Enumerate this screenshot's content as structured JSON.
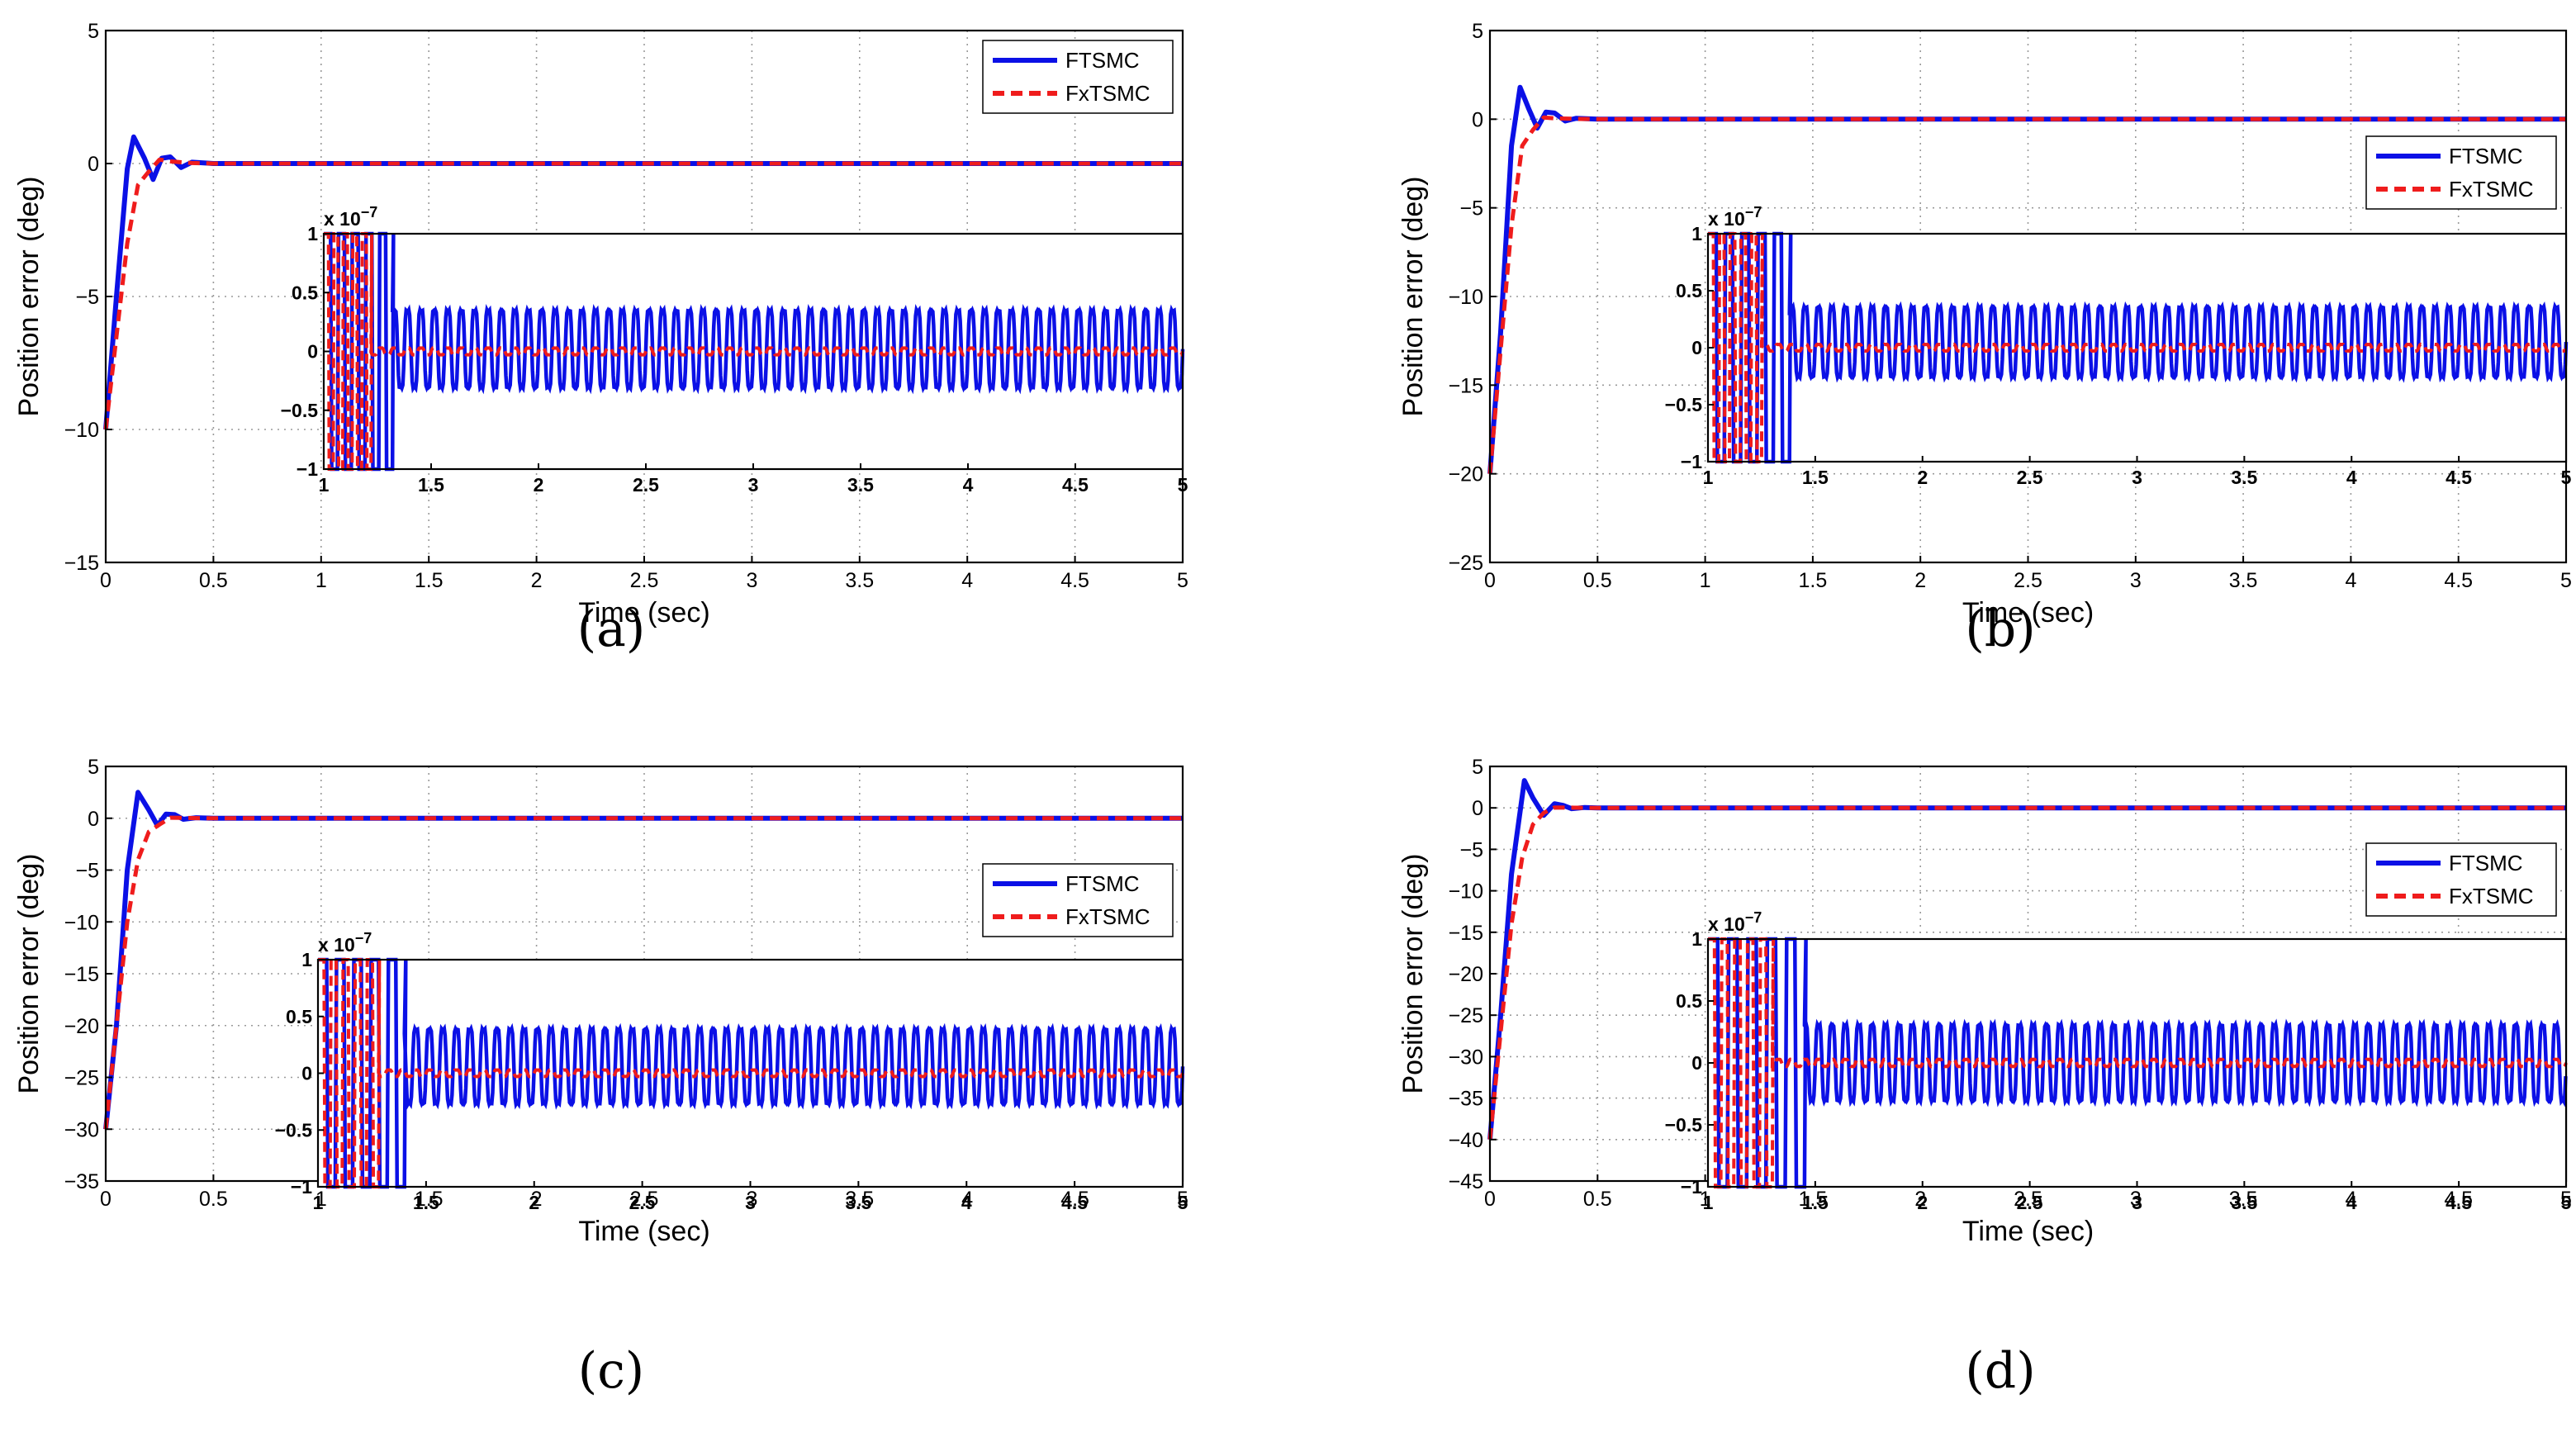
{
  "figure": {
    "series_styles": [
      {
        "name": "FTSMC",
        "color": "#0b10e6",
        "dash": "solid"
      },
      {
        "name": "FxTSMC",
        "color": "#ef1c1c",
        "dash": "dashed"
      }
    ]
  },
  "chart_data": [
    {
      "type": "line",
      "caption": "(a)",
      "xlabel": "Time (sec)",
      "ylabel": "Position error (deg)",
      "xlim": [
        0,
        5
      ],
      "ylim": [
        -15,
        5
      ],
      "xticks": [
        "0",
        "0.5",
        "1",
        "1.5",
        "2",
        "2.5",
        "3",
        "3.5",
        "4",
        "4.5",
        "5"
      ],
      "yticks": [
        "5",
        "0",
        "−5",
        "−10",
        "−15"
      ],
      "grid": true,
      "legend_position": "top-right",
      "initial_error": -10,
      "series": [
        {
          "name": "FTSMC",
          "x": [
            0,
            0.05,
            0.1,
            0.13,
            0.18,
            0.22,
            0.26,
            0.3,
            0.35,
            0.4,
            0.5,
            5
          ],
          "y": [
            -10,
            -5,
            -0.2,
            1.0,
            0.2,
            -0.6,
            0.2,
            0.25,
            -0.15,
            0.05,
            0,
            0
          ]
        },
        {
          "name": "FxTSMC",
          "x": [
            0,
            0.05,
            0.1,
            0.15,
            0.2,
            0.25,
            0.3,
            0.4,
            0.5,
            5
          ],
          "y": [
            -10,
            -6.5,
            -3,
            -0.8,
            -0.3,
            0.15,
            0.08,
            0.02,
            0,
            0
          ]
        }
      ],
      "inset": {
        "xlim": [
          1,
          5
        ],
        "ylim": [
          -1,
          1
        ],
        "exponent_label": "x 10",
        "exponent": "−7",
        "xticks": [
          "1",
          "1.5",
          "2",
          "2.5",
          "3",
          "3.5",
          "4",
          "4.5",
          "5"
        ],
        "yticks": [
          "1",
          "0.5",
          "0",
          "−0.5",
          "−1"
        ],
        "FTSMC": {
          "settle_time": 1.32,
          "oscillation_amplitude": 0.45,
          "oscillation_offset": 0.02,
          "cycles_per_sec": 16
        },
        "FxTSMC": {
          "settle_time": 1.22,
          "oscillation_amplitude": 0.04,
          "oscillation_offset": 0.0,
          "cycles_per_sec": 16
        }
      }
    },
    {
      "type": "line",
      "caption": "(b)",
      "xlabel": "Time (sec)",
      "ylabel": "Position error (deg)",
      "xlim": [
        0,
        5
      ],
      "ylim": [
        -25,
        5
      ],
      "xticks": [
        "0",
        "0.5",
        "1",
        "1.5",
        "2",
        "2.5",
        "3",
        "3.5",
        "4",
        "4.5",
        "5"
      ],
      "yticks": [
        "5",
        "0",
        "−5",
        "−10",
        "−15",
        "−20",
        "−25"
      ],
      "grid": true,
      "legend_position": "right",
      "initial_error": -20,
      "series": [
        {
          "name": "FTSMC",
          "x": [
            0,
            0.05,
            0.1,
            0.14,
            0.18,
            0.22,
            0.26,
            0.3,
            0.35,
            0.4,
            0.5,
            5
          ],
          "y": [
            -20,
            -12,
            -1.5,
            1.8,
            0.6,
            -0.5,
            0.4,
            0.35,
            -0.1,
            0.05,
            0,
            0
          ]
        },
        {
          "name": "FxTSMC",
          "x": [
            0,
            0.05,
            0.1,
            0.15,
            0.2,
            0.25,
            0.3,
            0.4,
            0.5,
            5
          ],
          "y": [
            -20,
            -13,
            -6,
            -1.5,
            -0.6,
            0.1,
            0.05,
            0.02,
            0,
            0
          ]
        }
      ],
      "inset": {
        "xlim": [
          1,
          5
        ],
        "ylim": [
          -1,
          1
        ],
        "exponent_label": "x 10",
        "exponent": "−7",
        "xticks": [
          "1",
          "1.5",
          "2",
          "2.5",
          "3",
          "3.5",
          "4",
          "4.5",
          "5"
        ],
        "yticks": [
          "1",
          "0.5",
          "0",
          "−0.5",
          "−1"
        ],
        "FTSMC": {
          "settle_time": 1.38,
          "oscillation_amplitude": 0.42,
          "oscillation_offset": 0.05,
          "cycles_per_sec": 16
        },
        "FxTSMC": {
          "settle_time": 1.25,
          "oscillation_amplitude": 0.04,
          "oscillation_offset": 0.0,
          "cycles_per_sec": 16
        }
      }
    },
    {
      "type": "line",
      "caption": "(c)",
      "xlabel": "Time (sec)",
      "ylabel": "Position error (deg)",
      "xlim": [
        0,
        5
      ],
      "ylim": [
        -35,
        5
      ],
      "xticks": [
        "0",
        "0.5",
        "1",
        "1.5",
        "2",
        "2.5",
        "3",
        "3.5",
        "4",
        "4.5",
        "5"
      ],
      "yticks": [
        "5",
        "0",
        "−5",
        "−10",
        "−15",
        "−20",
        "−25",
        "−30",
        "−35"
      ],
      "grid": true,
      "legend_position": "right",
      "initial_error": -30,
      "series": [
        {
          "name": "FTSMC",
          "x": [
            0,
            0.05,
            0.1,
            0.15,
            0.2,
            0.24,
            0.28,
            0.32,
            0.36,
            0.42,
            0.5,
            5
          ],
          "y": [
            -30,
            -20,
            -5,
            2.5,
            0.8,
            -0.7,
            0.4,
            0.35,
            -0.1,
            0.05,
            0,
            0
          ]
        },
        {
          "name": "FxTSMC",
          "x": [
            0,
            0.05,
            0.1,
            0.15,
            0.2,
            0.25,
            0.3,
            0.4,
            0.5,
            5
          ],
          "y": [
            -30,
            -20,
            -10,
            -4,
            -1.3,
            -0.6,
            0.05,
            0.02,
            0,
            0
          ]
        }
      ],
      "inset": {
        "xlim": [
          1,
          5
        ],
        "ylim": [
          -1,
          1
        ],
        "exponent_label": "x 10",
        "exponent": "−7",
        "xticks": [
          "1",
          "1.5",
          "2",
          "2.5",
          "3",
          "3.5",
          "4",
          "4.5",
          "5"
        ],
        "yticks": [
          "1",
          "0.5",
          "0",
          "−0.5",
          "−1"
        ],
        "FTSMC": {
          "settle_time": 1.4,
          "oscillation_amplitude": 0.45,
          "oscillation_offset": 0.06,
          "cycles_per_sec": 16
        },
        "FxTSMC": {
          "settle_time": 1.28,
          "oscillation_amplitude": 0.04,
          "oscillation_offset": 0.0,
          "cycles_per_sec": 16
        }
      }
    },
    {
      "type": "line",
      "caption": "(d)",
      "xlabel": "Time (sec)",
      "ylabel": "Position error (deg)",
      "xlim": [
        0,
        5
      ],
      "ylim": [
        -45,
        5
      ],
      "xticks": [
        "0",
        "0.5",
        "1",
        "1.5",
        "2",
        "2.5",
        "3",
        "3.5",
        "4",
        "4.5",
        "5"
      ],
      "yticks": [
        "5",
        "0",
        "−5",
        "−10",
        "−15",
        "−20",
        "−25",
        "−30",
        "−35",
        "−40",
        "−45"
      ],
      "grid": true,
      "legend_position": "right",
      "initial_error": -40,
      "series": [
        {
          "name": "FTSMC",
          "x": [
            0,
            0.05,
            0.1,
            0.16,
            0.2,
            0.25,
            0.3,
            0.34,
            0.38,
            0.44,
            0.5,
            5
          ],
          "y": [
            -40,
            -25,
            -8,
            3.3,
            1.2,
            -0.9,
            0.5,
            0.3,
            -0.1,
            0.05,
            0,
            0
          ]
        },
        {
          "name": "FxTSMC",
          "x": [
            0,
            0.05,
            0.1,
            0.15,
            0.2,
            0.25,
            0.3,
            0.4,
            0.5,
            5
          ],
          "y": [
            -40,
            -27,
            -14,
            -6,
            -2,
            -0.6,
            0.05,
            0.02,
            0,
            0
          ]
        }
      ],
      "inset": {
        "xlim": [
          1,
          5
        ],
        "ylim": [
          -1,
          1
        ],
        "exponent_label": "x 10",
        "exponent": "−7",
        "xticks": [
          "1",
          "1.5",
          "2",
          "2.5",
          "3",
          "3.5",
          "4",
          "4.5",
          "5"
        ],
        "yticks": [
          "1",
          "0.5",
          "0",
          "−0.5",
          "−1"
        ],
        "FTSMC": {
          "settle_time": 1.45,
          "oscillation_amplitude": 0.42,
          "oscillation_offset": 0.0,
          "cycles_per_sec": 16
        },
        "FxTSMC": {
          "settle_time": 1.3,
          "oscillation_amplitude": 0.04,
          "oscillation_offset": 0.0,
          "cycles_per_sec": 16
        }
      }
    }
  ]
}
